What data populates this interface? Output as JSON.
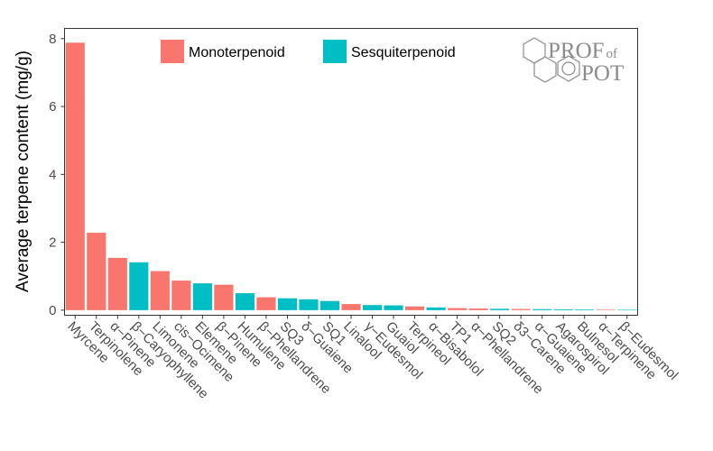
{
  "chart_data": {
    "type": "bar",
    "ylabel": "Average terpene content (mg/g)",
    "xlabel": "",
    "ylim": [
      -0.15,
      8.3
    ],
    "yticks": [
      0,
      2,
      4,
      6,
      8
    ],
    "grid": false,
    "legend_position": "top-center",
    "categories": [
      "Myrcene",
      "Terpinolene",
      "α−Pinene",
      "β−Caryophyllene",
      "Limonene",
      "cis−Ocimene",
      "Elemene",
      "β−Pinene",
      "Humulene",
      "β−Phellandrene",
      "SQ3",
      "δ−Guaiene",
      "SQ1",
      "Linalool",
      "γ−Eudesmol",
      "Guaiol",
      "Terpineol",
      "α−Bisabolol",
      "TP1",
      "α−Phellandrene",
      "SQ2",
      "δ3−Carene",
      "α−Guaiene",
      "Agarospirol",
      "Bulnesol",
      "α−Terpinene",
      "β−Eudesmol"
    ],
    "values": [
      7.88,
      2.28,
      1.54,
      1.41,
      1.15,
      0.87,
      0.79,
      0.75,
      0.5,
      0.38,
      0.35,
      0.32,
      0.27,
      0.18,
      0.15,
      0.14,
      0.11,
      0.08,
      0.06,
      0.05,
      0.04,
      0.035,
      0.03,
      0.025,
      0.02,
      0.015,
      0.01
    ],
    "groups": [
      "Monoterpenoid",
      "Monoterpenoid",
      "Monoterpenoid",
      "Sesquiterpenoid",
      "Monoterpenoid",
      "Monoterpenoid",
      "Sesquiterpenoid",
      "Monoterpenoid",
      "Sesquiterpenoid",
      "Monoterpenoid",
      "Sesquiterpenoid",
      "Sesquiterpenoid",
      "Sesquiterpenoid",
      "Monoterpenoid",
      "Sesquiterpenoid",
      "Sesquiterpenoid",
      "Monoterpenoid",
      "Sesquiterpenoid",
      "Monoterpenoid",
      "Monoterpenoid",
      "Sesquiterpenoid",
      "Monoterpenoid",
      "Sesquiterpenoid",
      "Sesquiterpenoid",
      "Sesquiterpenoid",
      "Monoterpenoid",
      "Sesquiterpenoid"
    ],
    "legend": [
      {
        "name": "Monoterpenoid",
        "color": "#f8766d"
      },
      {
        "name": "Sesquiterpenoid",
        "color": "#00bfc4"
      }
    ]
  },
  "logo": {
    "line1_main": "PROF",
    "line1_small": "of",
    "line2": "POT",
    "icon": "benzene-rings-icon"
  }
}
